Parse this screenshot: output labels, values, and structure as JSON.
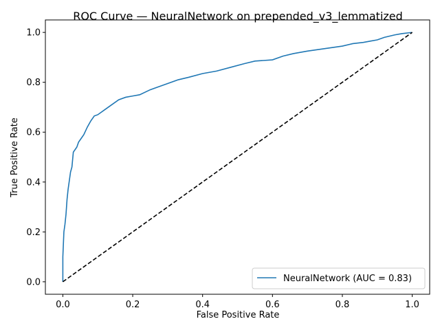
{
  "chart_data": {
    "type": "line",
    "title": "ROC Curve — NeuralNetwork on prepended_v3_lemmatized",
    "xlabel": "False Positive Rate",
    "ylabel": "True Positive Rate",
    "xlim": [
      -0.05,
      1.05
    ],
    "ylim": [
      -0.05,
      1.05
    ],
    "xticks": [
      "0.0",
      "0.2",
      "0.4",
      "0.6",
      "0.8",
      "1.0"
    ],
    "yticks": [
      "0.0",
      "0.2",
      "0.4",
      "0.6",
      "0.8",
      "1.0"
    ],
    "grid": false,
    "legend_position": "lower-right",
    "series": [
      {
        "name": "NeuralNetwork (AUC = 0.83)",
        "color": "#1f77b4",
        "style": "solid",
        "x": [
          0,
          0,
          0.003,
          0.006,
          0.009,
          0.012,
          0.015,
          0.018,
          0.022,
          0.026,
          0.03,
          0.035,
          0.04,
          0.045,
          0.05,
          0.055,
          0.06,
          0.07,
          0.08,
          0.09,
          0.1,
          0.12,
          0.14,
          0.16,
          0.18,
          0.2,
          0.22,
          0.25,
          0.28,
          0.3,
          0.33,
          0.36,
          0.4,
          0.44,
          0.48,
          0.52,
          0.55,
          0.6,
          0.63,
          0.66,
          0.7,
          0.75,
          0.8,
          0.83,
          0.86,
          0.88,
          0.9,
          0.92,
          0.95,
          0.97,
          1.0
        ],
        "y": [
          0,
          0.1,
          0.2,
          0.23,
          0.27,
          0.33,
          0.37,
          0.4,
          0.44,
          0.46,
          0.52,
          0.53,
          0.54,
          0.56,
          0.57,
          0.58,
          0.59,
          0.62,
          0.645,
          0.665,
          0.67,
          0.69,
          0.71,
          0.73,
          0.74,
          0.745,
          0.75,
          0.77,
          0.785,
          0.795,
          0.81,
          0.82,
          0.835,
          0.845,
          0.86,
          0.875,
          0.885,
          0.89,
          0.905,
          0.915,
          0.925,
          0.935,
          0.945,
          0.955,
          0.96,
          0.965,
          0.97,
          0.98,
          0.99,
          0.995,
          1.0
        ]
      },
      {
        "name": "",
        "color": "#000000",
        "style": "dashed",
        "x": [
          0,
          1
        ],
        "y": [
          0,
          1
        ]
      }
    ]
  }
}
